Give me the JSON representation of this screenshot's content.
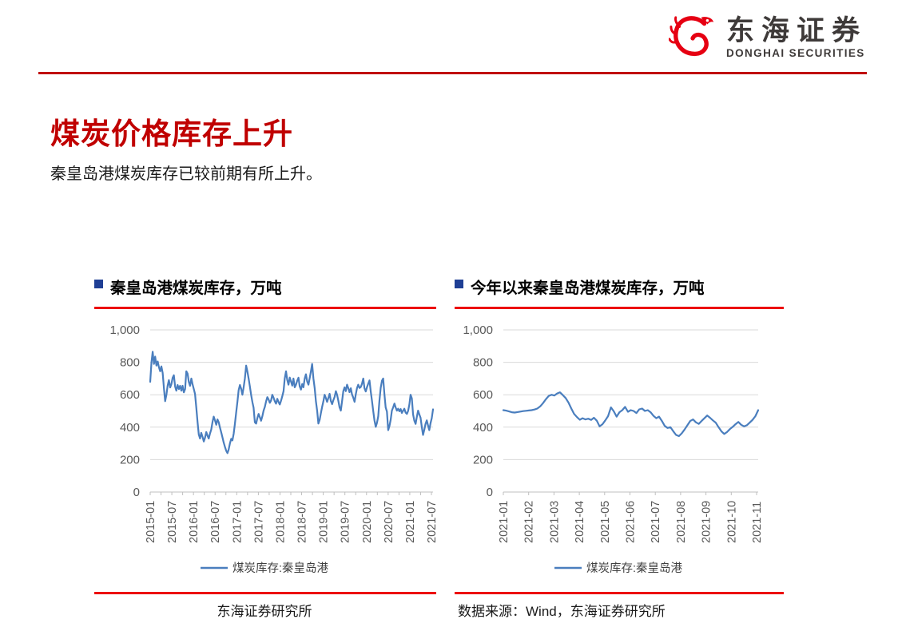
{
  "logo": {
    "name_cn": "东海证券",
    "name_en": "DONGHAI SECURITIES"
  },
  "page": {
    "title": "煤炭价格库存上升",
    "subtitle": "秦皇岛港煤炭库存已较前期有所上升。"
  },
  "colors": {
    "title_red": "#C00000",
    "rule_red": "#EC0000",
    "line_blue": "#4A7EBE",
    "bullet_navy": "#1F3F95",
    "axis_text": "#595959",
    "grid": "#D9D9D9",
    "logo_red": "#E60012",
    "logo_text": "#3E3A39"
  },
  "chart_data": [
    {
      "type": "line",
      "title": "秦皇岛港煤炭库存，万吨",
      "xlabel": "",
      "ylabel": "",
      "ylim": [
        0,
        1000
      ],
      "y_tick_labels": [
        "0",
        "200",
        "400",
        "600",
        "800",
        "1,000"
      ],
      "x_tick_labels": [
        "2015-01",
        "2015-07",
        "2016-01",
        "2016-07",
        "2017-01",
        "2017-07",
        "2018-01",
        "2018-07",
        "2019-01",
        "2019-07",
        "2020-01",
        "2020-07",
        "2021-01",
        "2021-07"
      ],
      "grid": true,
      "legend_position": "bottom",
      "footer": "东海证券研究所",
      "series": [
        {
          "name": "煤炭库存:秦皇岛港",
          "values": [
            680,
            800,
            865,
            790,
            835,
            780,
            805,
            770,
            745,
            775,
            735,
            640,
            560,
            600,
            655,
            690,
            645,
            665,
            705,
            720,
            650,
            625,
            660,
            635,
            655,
            625,
            655,
            615,
            635,
            745,
            730,
            680,
            655,
            700,
            665,
            635,
            605,
            520,
            430,
            355,
            330,
            365,
            340,
            312,
            335,
            370,
            348,
            330,
            362,
            385,
            432,
            465,
            442,
            415,
            448,
            430,
            398,
            368,
            338,
            305,
            278,
            255,
            240,
            262,
            300,
            328,
            318,
            360,
            420,
            490,
            558,
            628,
            660,
            638,
            600,
            648,
            700,
            780,
            745,
            700,
            650,
            600,
            555,
            520,
            430,
            422,
            455,
            482,
            462,
            440,
            468,
            502,
            525,
            558,
            585,
            572,
            550,
            565,
            600,
            582,
            560,
            545,
            575,
            555,
            540,
            562,
            590,
            622,
            700,
            745,
            692,
            662,
            706,
            682,
            656,
            700,
            646,
            662,
            686,
            705,
            652,
            632,
            666,
            646,
            700,
            726,
            682,
            662,
            702,
            745,
            790,
            700,
            640,
            560,
            500,
            422,
            445,
            485,
            525,
            560,
            600,
            580,
            556,
            580,
            606,
            562,
            542,
            566,
            586,
            622,
            600,
            562,
            522,
            502,
            562,
            622,
            646,
            622,
            662,
            640,
            616,
            640,
            602,
            582,
            556,
            602,
            642,
            662,
            642,
            648,
            668,
            700,
            640,
            620,
            646,
            668,
            688,
            622,
            562,
            502,
            442,
            402,
            426,
            466,
            562,
            642,
            686,
            700,
            602,
            522,
            496,
            382,
            406,
            446,
            502,
            522,
            546,
            522,
            502,
            514,
            498,
            512,
            488,
            502,
            514,
            490,
            482,
            500,
            540,
            600,
            578,
            480,
            440,
            420,
            462,
            502,
            480,
            458,
            400,
            352,
            384,
            420,
            442,
            410,
            382,
            425,
            455,
            510
          ]
        }
      ]
    },
    {
      "type": "line",
      "title": "今年以来秦皇岛港煤炭库存，万吨",
      "xlabel": "",
      "ylabel": "",
      "ylim": [
        0,
        1000
      ],
      "y_tick_labels": [
        "0",
        "200",
        "400",
        "600",
        "800",
        "1,000"
      ],
      "x_tick_labels": [
        "2021-01",
        "2021-02",
        "2021-03",
        "2021-04",
        "2021-05",
        "2021-06",
        "2021-07",
        "2021-08",
        "2021-09",
        "2021-10",
        "2021-11"
      ],
      "grid": true,
      "legend_position": "bottom",
      "footer": "数据来源：Wind，东海证券研究所",
      "series": [
        {
          "name": "煤炭库存:秦皇岛港",
          "values": [
            505,
            502,
            497,
            492,
            490,
            493,
            496,
            499,
            501,
            503,
            505,
            509,
            515,
            528,
            548,
            572,
            592,
            600,
            595,
            608,
            615,
            598,
            580,
            552,
            515,
            482,
            462,
            446,
            455,
            448,
            452,
            445,
            458,
            440,
            405,
            418,
            442,
            468,
            522,
            498,
            465,
            492,
            505,
            525,
            495,
            505,
            500,
            487,
            510,
            515,
            500,
            505,
            492,
            470,
            455,
            465,
            438,
            408,
            395,
            400,
            375,
            352,
            345,
            362,
            385,
            412,
            438,
            448,
            430,
            420,
            438,
            455,
            472,
            458,
            442,
            428,
            400,
            375,
            358,
            370,
            388,
            402,
            418,
            432,
            415,
            405,
            412,
            428,
            445,
            468,
            505
          ]
        }
      ]
    }
  ]
}
